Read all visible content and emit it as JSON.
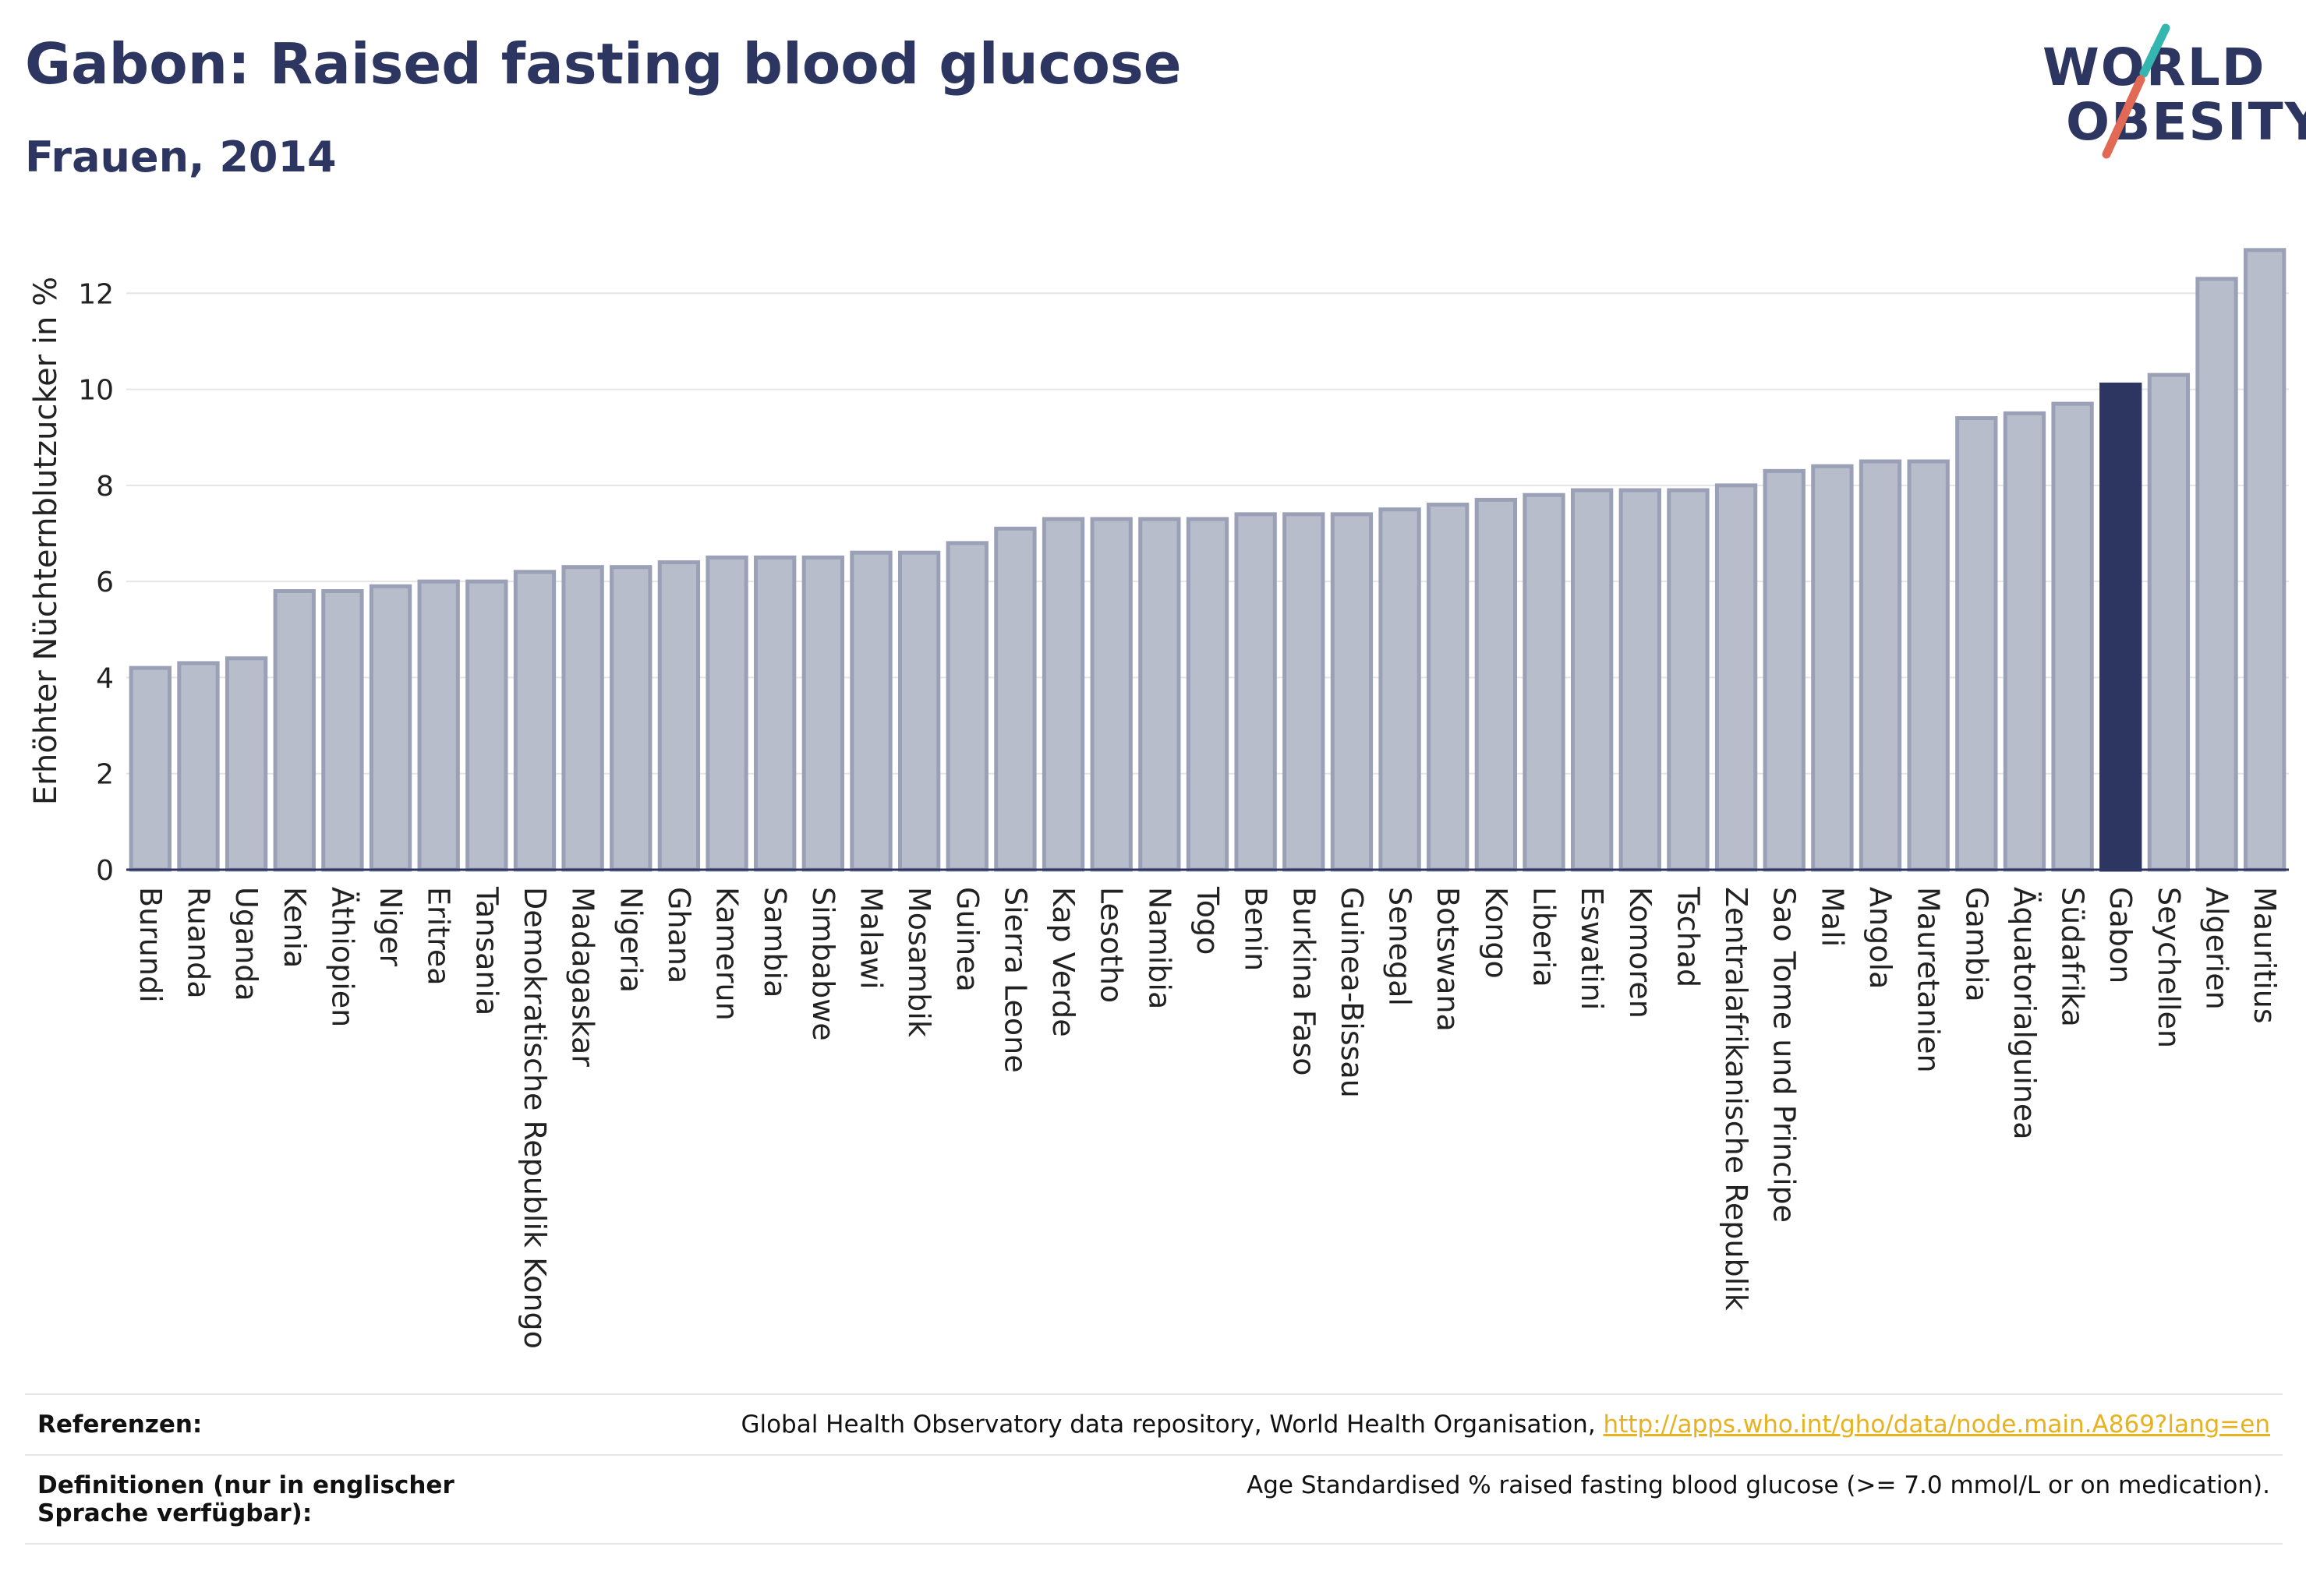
{
  "header": {
    "title": "Gabon: Raised fasting blood glucose",
    "subtitle": "Frauen, 2014"
  },
  "logo": {
    "line1": "WORLD",
    "line2": "OBESITY"
  },
  "colors": {
    "bar": "#b8bdcc",
    "bar_border": "#9aa0b6",
    "highlight": "#2d3561",
    "text": "#2d3561",
    "grid": "#e5e5e5",
    "logo_slash_top": "#35b5b0",
    "logo_slash_bottom": "#e26a55",
    "link": "#e8b21e"
  },
  "chart_data": {
    "type": "bar",
    "title": "",
    "xlabel": "",
    "ylabel": "Erhöhter Nüchternblutzucker in %",
    "ylim": [
      0,
      13.4
    ],
    "yticks": [
      0,
      2,
      4,
      6,
      8,
      10,
      12
    ],
    "grid": true,
    "highlight": "Gabon",
    "categories": [
      "Burundi",
      "Ruanda",
      "Uganda",
      "Kenia",
      "Äthiopien",
      "Niger",
      "Eritrea",
      "Tansania",
      "Demokratische Republik Kongo",
      "Madagaskar",
      "Nigeria",
      "Ghana",
      "Kamerun",
      "Sambia",
      "Simbabwe",
      "Malawi",
      "Mosambik",
      "Guinea",
      "Sierra Leone",
      "Kap Verde",
      "Lesotho",
      "Namibia",
      "Togo",
      "Benin",
      "Burkina Faso",
      "Guinea-Bissau",
      "Senegal",
      "Botswana",
      "Kongo",
      "Liberia",
      "Eswatini",
      "Komoren",
      "Tschad",
      "Zentralafrikanische Republik",
      "Sao Tome und Principe",
      "Mali",
      "Angola",
      "Mauretanien",
      "Gambia",
      "Äquatorialguinea",
      "Südafrika",
      "Gabon",
      "Seychellen",
      "Algerien",
      "Mauritius"
    ],
    "values": [
      4.2,
      4.3,
      4.4,
      5.8,
      5.8,
      5.9,
      6.0,
      6.0,
      6.2,
      6.3,
      6.3,
      6.4,
      6.5,
      6.5,
      6.5,
      6.6,
      6.6,
      6.8,
      7.1,
      7.3,
      7.3,
      7.3,
      7.3,
      7.4,
      7.4,
      7.4,
      7.5,
      7.6,
      7.7,
      7.8,
      7.9,
      7.9,
      7.9,
      8.0,
      8.3,
      8.4,
      8.5,
      8.5,
      9.4,
      9.5,
      9.7,
      10.1,
      10.3,
      12.3,
      12.9
    ]
  },
  "footer": {
    "references_label": "Referenzen:",
    "references_text": "Global Health Observatory data repository, World Health Organisation, ",
    "references_link": "http://apps.who.int/gho/data/node.main.A869?lang=en",
    "definitions_label": "Definitionen (nur in englischer Sprache verfügbar):",
    "definitions_text": "Age Standardised % raised fasting blood glucose (>= 7.0 mmol/L or on medication)."
  }
}
